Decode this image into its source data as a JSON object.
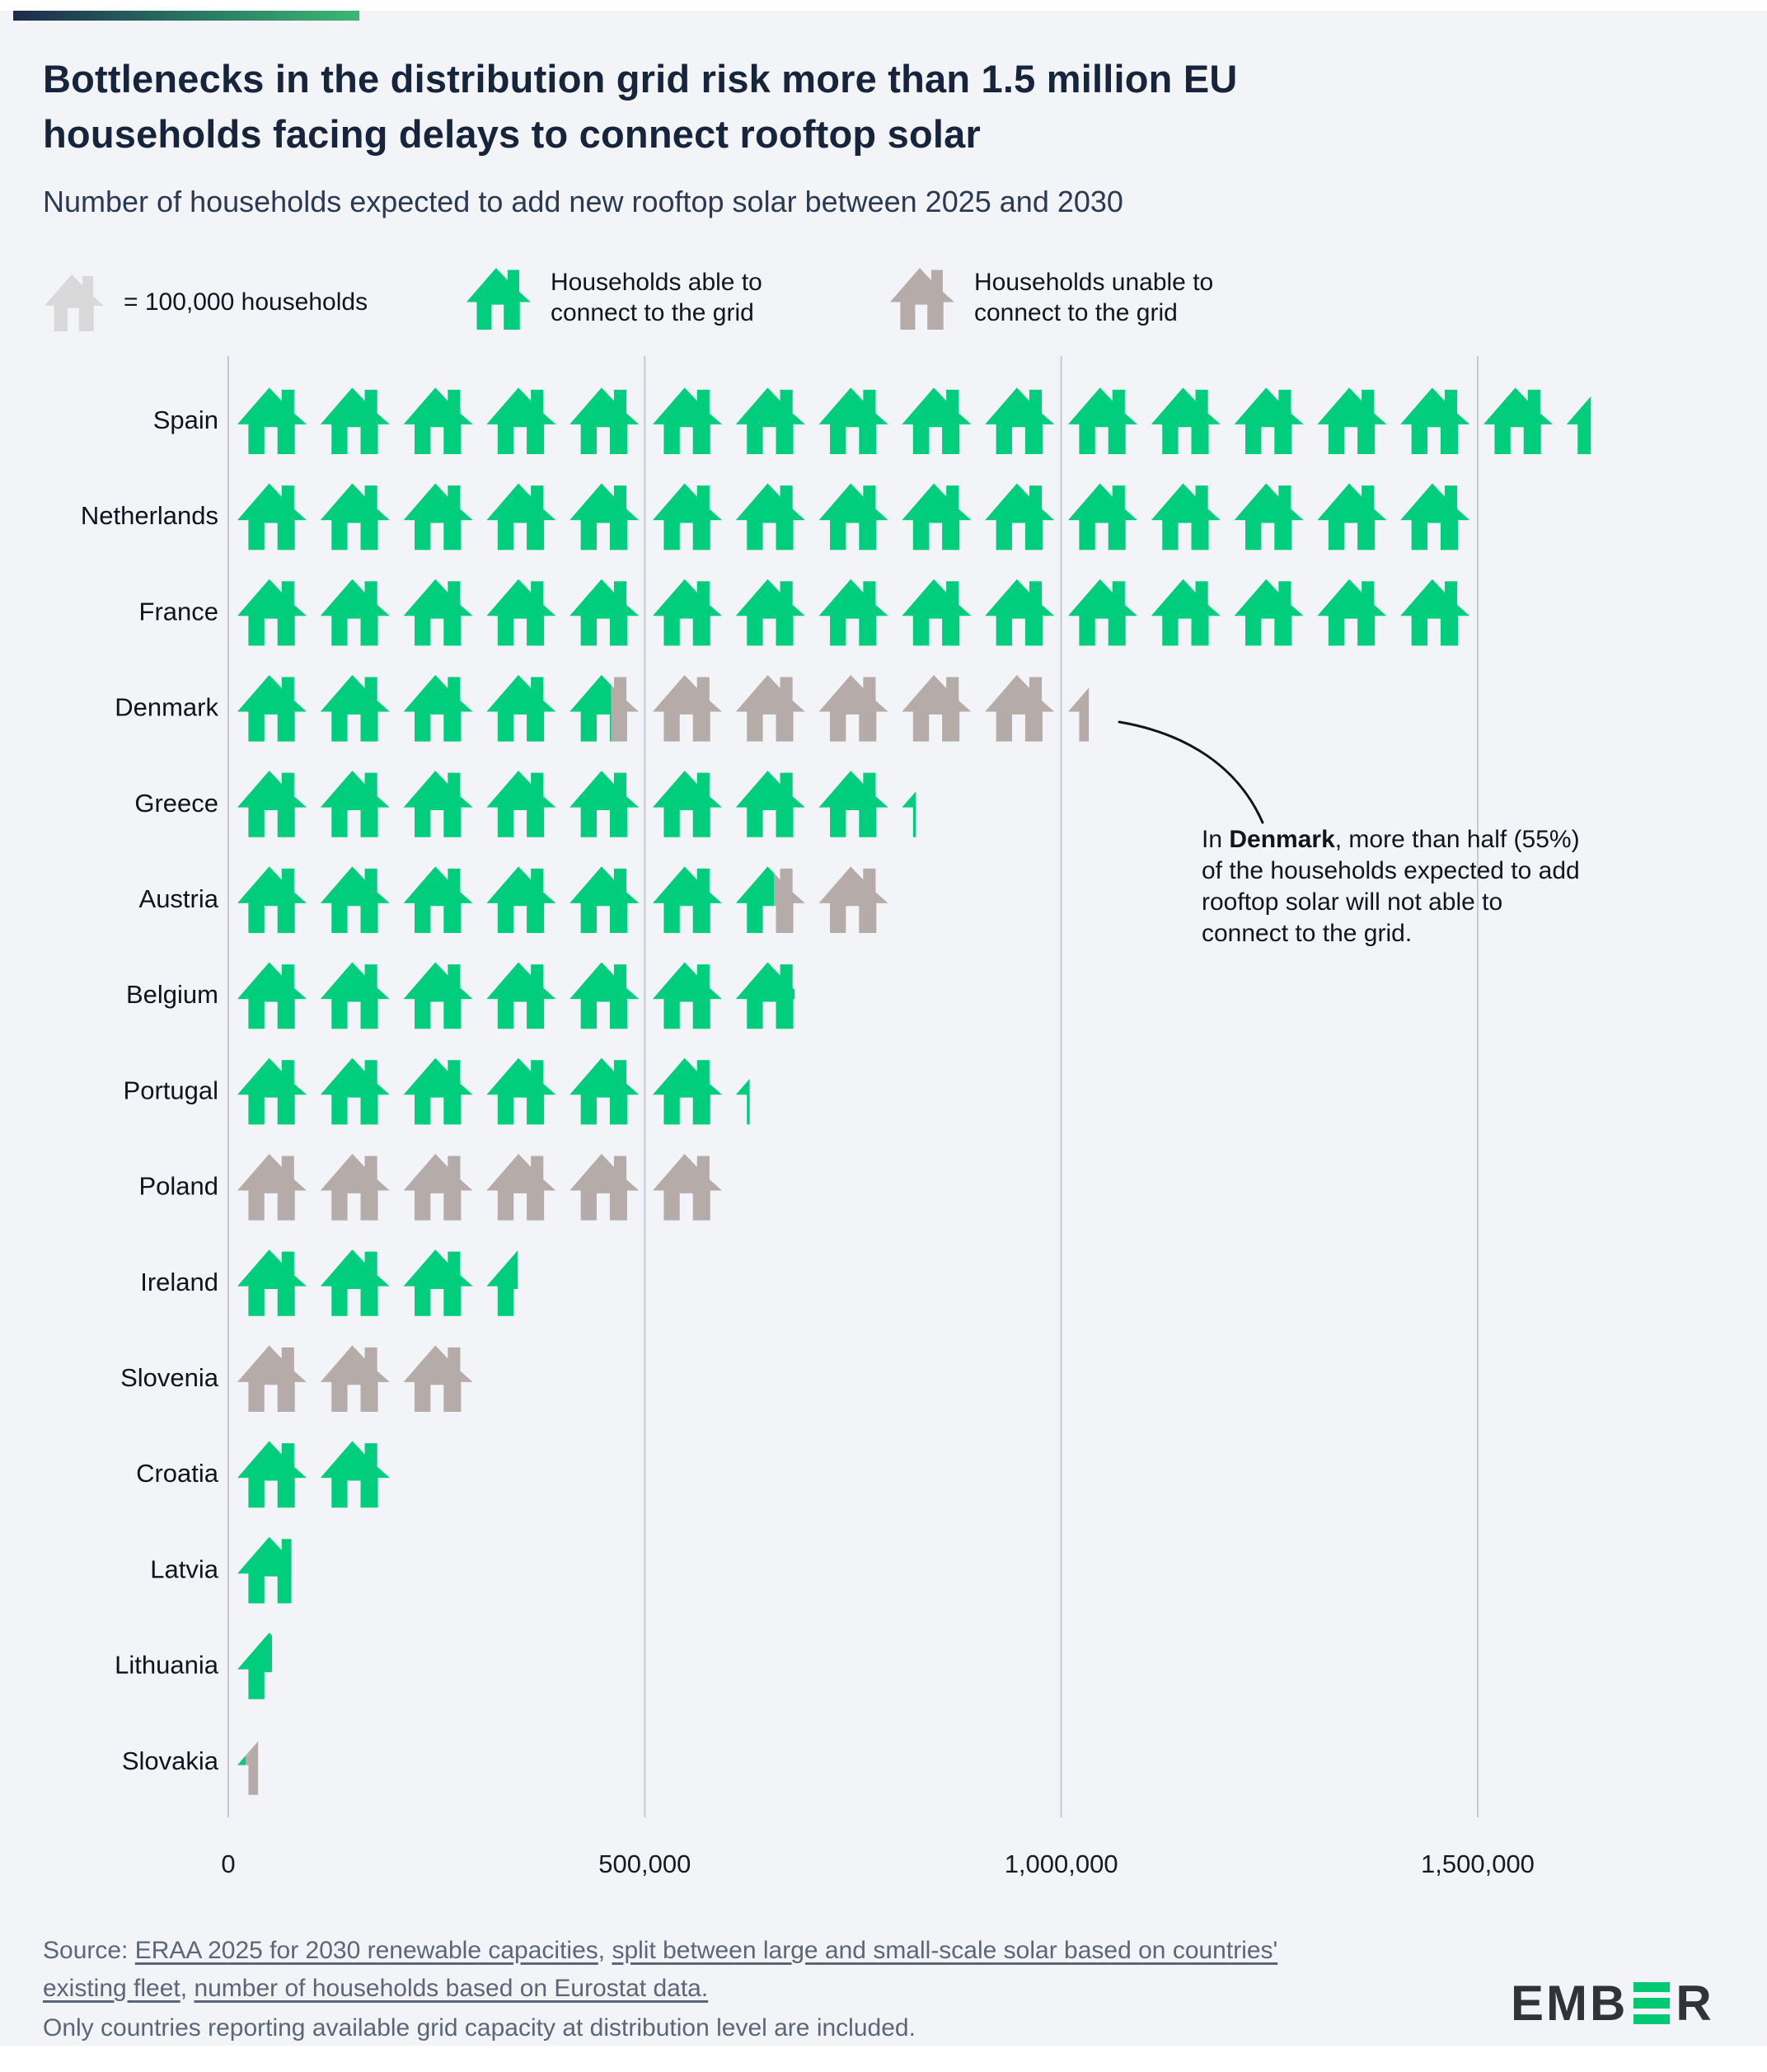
{
  "header": {
    "title_line1": "Bottlenecks in the distribution grid risk more than 1.5 million EU",
    "title_line2": "households facing delays to connect rooftop solar",
    "subtitle": "Number of households expected to add new rooftop solar between 2025 and 2030"
  },
  "legend": {
    "unit_label": "= 100,000 households",
    "able_line1": "Households able to",
    "able_line2": "connect to the grid",
    "unable_line1": "Households unable to",
    "unable_line2": "connect to the grid",
    "unit_icon_color": "#d9d9d9"
  },
  "chart_data": {
    "type": "pictogram",
    "icon": "house",
    "unit_households": 100000,
    "title": "Number of households expected to add new rooftop solar between 2025 and 2030",
    "colors": {
      "able": "#00ce7c",
      "unable": "#b5acaa",
      "gridline": "#c5c9d2"
    },
    "legend_position": "top",
    "grid": "vertical-lines",
    "x_ticks": [
      {
        "label": "0",
        "value": 0
      },
      {
        "label": "500,000",
        "value": 500000
      },
      {
        "label": "1,000,000",
        "value": 1000000
      },
      {
        "label": "1,500,000",
        "value": 1500000
      }
    ],
    "series_names": [
      "Households able to connect to the grid",
      "Households unable to connect to the grid"
    ],
    "countries": [
      {
        "name": "Spain",
        "able": 1635000,
        "unable": 0
      },
      {
        "name": "Netherlands",
        "able": 1500000,
        "unable": 0
      },
      {
        "name": "France",
        "able": 1500000,
        "unable": 0
      },
      {
        "name": "Denmark",
        "able": 460000,
        "unable": 570000
      },
      {
        "name": "Greece",
        "able": 820000,
        "unable": 0
      },
      {
        "name": "Austria",
        "able": 655000,
        "unable": 145000
      },
      {
        "name": "Belgium",
        "able": 685000,
        "unable": 0
      },
      {
        "name": "Portugal",
        "able": 620000,
        "unable": 0
      },
      {
        "name": "Poland",
        "able": 0,
        "unable": 600000
      },
      {
        "name": "Ireland",
        "able": 345000,
        "unable": 0
      },
      {
        "name": "Slovenia",
        "able": 0,
        "unable": 300000
      },
      {
        "name": "Croatia",
        "able": 200000,
        "unable": 0
      },
      {
        "name": "Latvia",
        "able": 78000,
        "unable": 0
      },
      {
        "name": "Lithuania",
        "able": 50000,
        "unable": 0
      },
      {
        "name": "Slovakia",
        "able": 12000,
        "unable": 18000
      }
    ]
  },
  "annotation": {
    "line1_pre": "In ",
    "line1_bold": "Denmark",
    "line1_post": ", more than half (55%)",
    "line2": "of the households expected to add",
    "line3": "rooftop solar will not able to",
    "line4": "connect to the grid."
  },
  "source": {
    "prefix": "Source: ",
    "link1": "ERAA 2025 for 2030 renewable capacities",
    "sep1": ", ",
    "link2": "split between large and small-scale solar based on countries' existing fleet",
    "sep2": ", ",
    "link3": "number of households based on Eurostat data.",
    "note": "Only countries reporting available grid capacity at distribution level are included."
  },
  "logo": {
    "left": "EMB",
    "right": "R",
    "bar_color": "#00c873"
  }
}
